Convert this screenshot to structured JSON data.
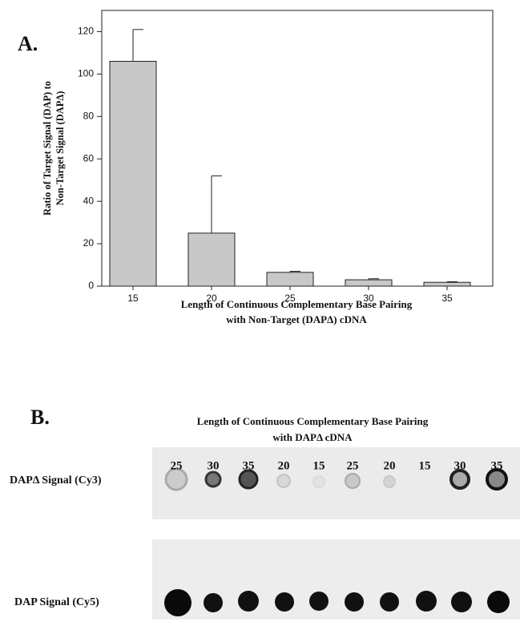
{
  "chart_data": {
    "type": "bar",
    "panel_label": "A.",
    "y_label": [
      "Ratio of Target Signal (DAP) to",
      "Non-Target Signal (DAPΔ)"
    ],
    "x_label": [
      "Length of Continuous Complementary Base Pairing",
      "with Non-Target (DAPΔ) cDNA"
    ],
    "categories": [
      "15",
      "20",
      "25",
      "30",
      "35"
    ],
    "values": [
      106,
      25,
      6.5,
      3,
      1.8
    ],
    "errors": [
      15,
      27,
      0.5,
      0.5,
      0.3
    ],
    "color": "#c8c8c8",
    "ylim": [
      0,
      130
    ],
    "yticks": [
      0,
      20,
      40,
      60,
      80,
      100,
      120
    ]
  },
  "panel_b": {
    "panel_label": "B.",
    "title": [
      "Length of Continuous Complementary Base Pairing",
      "with DAPΔ  cDNA"
    ],
    "columns": [
      "25",
      "30",
      "35",
      "20",
      "15",
      "25",
      "20",
      "15",
      "30",
      "35"
    ],
    "rows": [
      "DAPΔ Signal (Cy3)",
      "DAP Signal (Cy5)"
    ]
  }
}
